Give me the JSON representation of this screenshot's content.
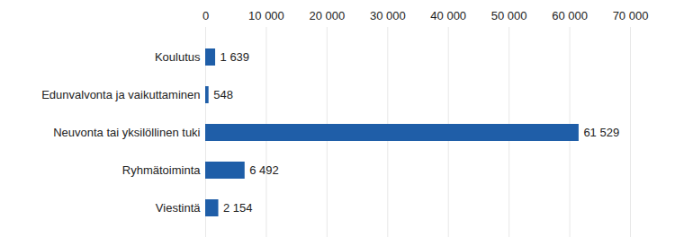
{
  "chart_data": {
    "type": "bar",
    "orientation": "horizontal",
    "categories": [
      "Koulutus",
      "Edunvalvonta ja vaikuttaminen",
      "Neuvonta tai yksilöllinen tuki",
      "Ryhmätoiminta",
      "Viestintä"
    ],
    "values": [
      1639,
      548,
      61529,
      6492,
      2154
    ],
    "value_labels": [
      "1 639",
      "548",
      "61 529",
      "6 492",
      "2 154"
    ],
    "color": "#1f5ea8",
    "xlim": [
      0,
      70000
    ],
    "xticks": [
      0,
      {
        "value": 10000,
        "label": "10 000"
      },
      {
        "value": 20000,
        "label": "20 000"
      },
      {
        "value": 30000,
        "label": "30 000"
      },
      {
        "value": 40000,
        "label": "40 000"
      },
      {
        "value": 50000,
        "label": "50 000"
      },
      {
        "value": 60000,
        "label": "60 000"
      },
      {
        "value": 70000,
        "label": "70 000"
      }
    ],
    "grid": true,
    "data_labels": true
  }
}
